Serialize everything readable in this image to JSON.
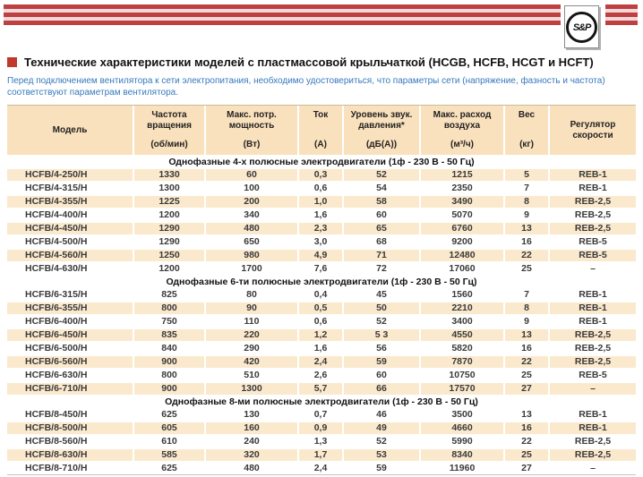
{
  "header": {
    "logo_text": "S&P"
  },
  "colors": {
    "accent_red": "#BE4042",
    "stripe_gap_pink": "#F4D9D9",
    "title_bullet_red": "#C0392B",
    "note_blue": "#3679BD",
    "table_header_bg": "#FAE1BD",
    "row_shaded_bg": "#FBE9CD"
  },
  "title": {
    "text": "Технические характеристики моделей с пластмассовой крыльчаткой (HCGB, HCFB, HCGT и HCFT)"
  },
  "note": "Перед подключением вентилятора к сети электропитания, необходимо удостовериться, что параметры сети (напряжение, фазность и частота) соответствуют параметрам вентилятора.",
  "table": {
    "columns": [
      {
        "name_lines": [
          "Модель"
        ],
        "unit": ""
      },
      {
        "name_lines": [
          "Частота",
          "вращения"
        ],
        "unit": "(об/мин)"
      },
      {
        "name_lines": [
          "Макс. потр.",
          "мощность"
        ],
        "unit": "(Вт)"
      },
      {
        "name_lines": [
          "Ток"
        ],
        "unit": "(А)"
      },
      {
        "name_lines": [
          "Уровень звук.",
          "давления*"
        ],
        "unit": "(дБ(А))"
      },
      {
        "name_lines": [
          "Макс. расход",
          "воздуха"
        ],
        "unit": "(м³/ч)"
      },
      {
        "name_lines": [
          "Вес"
        ],
        "unit": "(кг)"
      },
      {
        "name_lines": [
          "Регулятор",
          "скорости"
        ],
        "unit": ""
      }
    ],
    "sections": [
      {
        "title": "Однофазные 4-х полюсные электродвигатели (1ф - 230 В - 50 Гц)",
        "rows": [
          [
            "HCFB/4-250/H",
            "1330",
            "60",
            "0,3",
            "52",
            "1215",
            "5",
            "REB-1"
          ],
          [
            "HCFB/4-315/H",
            "1300",
            "100",
            "0,6",
            "54",
            "2350",
            "7",
            "REB-1"
          ],
          [
            "HCFB/4-355/H",
            "1225",
            "200",
            "1,0",
            "58",
            "3490",
            "8",
            "REB-2,5"
          ],
          [
            "HCFB/4-400/H",
            "1200",
            "340",
            "1,6",
            "60",
            "5070",
            "9",
            "REB-2,5"
          ],
          [
            "HCFB/4-450/H",
            "1290",
            "480",
            "2,3",
            "65",
            "6760",
            "13",
            "REB-2,5"
          ],
          [
            "HCFB/4-500/H",
            "1290",
            "650",
            "3,0",
            "68",
            "9200",
            "16",
            "REB-5"
          ],
          [
            "HCFB/4-560/H",
            "1250",
            "980",
            "4,9",
            "71",
            "12480",
            "22",
            "REB-5"
          ],
          [
            "HCFB/4-630/H",
            "1200",
            "1700",
            "7,6",
            "72",
            "17060",
            "25",
            "–"
          ]
        ]
      },
      {
        "title": "Однофазные 6-ти полюсные электродвигатели (1ф - 230 В - 50 Гц)",
        "rows": [
          [
            "HCFB/6-315/H",
            "825",
            "80",
            "0,4",
            "45",
            "1560",
            "7",
            "REB-1"
          ],
          [
            "HCFB/6-355/H",
            "800",
            "90",
            "0,5",
            "50",
            "2210",
            "8",
            "REB-1"
          ],
          [
            "HCFB/6-400/H",
            "750",
            "110",
            "0,6",
            "52",
            "3400",
            "9",
            "REB-1"
          ],
          [
            "HCFB/6-450/H",
            "835",
            "220",
            "1,2",
            "5 3",
            "4550",
            "13",
            "REB-2,5"
          ],
          [
            "HCFB/6-500/H",
            "840",
            "290",
            "1,6",
            "56",
            "5820",
            "16",
            "REB-2,5"
          ],
          [
            "HCFB/6-560/H",
            "900",
            "420",
            "2,4",
            "59",
            "7870",
            "22",
            "REB-2,5"
          ],
          [
            "HCFB/6-630/H",
            "800",
            "510",
            "2,6",
            "60",
            "10750",
            "25",
            "REB-5"
          ],
          [
            "HCFB/6-710/H",
            "900",
            "1300",
            "5,7",
            "66",
            "17570",
            "27",
            "–"
          ]
        ]
      },
      {
        "title": "Однофазные 8-ми полюсные электродвигатели (1ф - 230 В - 50 Гц)",
        "rows": [
          [
            "HCFB/8-450/H",
            "625",
            "130",
            "0,7",
            "46",
            "3500",
            "13",
            "REB-1"
          ],
          [
            "HCFB/8-500/H",
            "605",
            "160",
            "0,9",
            "49",
            "4660",
            "16",
            "REB-1"
          ],
          [
            "HCFB/8-560/H",
            "610",
            "240",
            "1,3",
            "52",
            "5990",
            "22",
            "REB-2,5"
          ],
          [
            "HCFB/8-630/H",
            "585",
            "320",
            "1,7",
            "53",
            "8340",
            "25",
            "REB-2,5"
          ],
          [
            "HCFB/8-710/H",
            "625",
            "480",
            "2,4",
            "59",
            "11960",
            "27",
            "–"
          ]
        ]
      }
    ]
  }
}
